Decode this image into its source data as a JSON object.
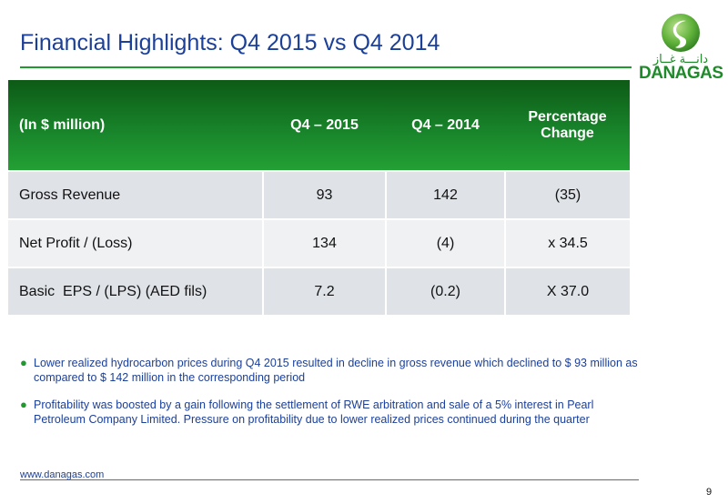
{
  "header": {
    "title": "Financial Highlights: Q4 2015 vs Q4 2014"
  },
  "logo": {
    "arabic_text": "دانـــة غــاز",
    "word": "DANAGAS",
    "brand_green": "#1f8a2a"
  },
  "table": {
    "headers": [
      "(In $ million)",
      "Q4 – 2015",
      "Q4 – 2014",
      "Percentage Change"
    ],
    "rows": [
      {
        "label": "Gross Revenue",
        "q4_2015": "93",
        "q4_2014": "142",
        "change": "(35)",
        "change_color": "#e8251c"
      },
      {
        "label": "Net Profit / (Loss)",
        "q4_2015": "134",
        "q4_2014": "(4)",
        "change": "x 34.5",
        "change_color": "#1f9a2d"
      },
      {
        "label": "Basic  EPS / (LPS) (AED fils)",
        "q4_2015": "7.2",
        "q4_2014": "(0.2)",
        "change": "X 37.0",
        "change_color": "#1f9a2d"
      }
    ]
  },
  "notes": [
    "Lower realized hydrocarbon prices during Q4 2015 resulted in decline in gross revenue which declined to $ 93 million as compared to $ 142 million in the corresponding period",
    "Profitability was boosted by a gain following the settlement of RWE arbitration and sale of a 5% interest in Pearl Petroleum Company Limited. Pressure on profitability due to lower realized prices continued during the quarter"
  ],
  "footer": {
    "url": "www.danagas.com",
    "page_number": "9"
  },
  "colors": {
    "title_blue": "#1c3f97",
    "header_green": "#18832a",
    "negative_red": "#e8251c",
    "positive_green": "#1f9a2d"
  }
}
